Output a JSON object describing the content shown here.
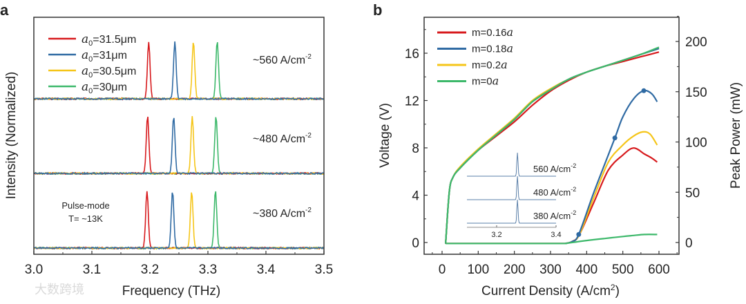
{
  "watermark": "大数跨境",
  "chart_data": [
    {
      "panel_label": "a",
      "type": "line",
      "xlabel": "Frequency (THz)",
      "ylabel": "Intensity (Normalized)",
      "xlim": [
        3.0,
        3.5
      ],
      "xticks": [
        "3.0",
        "3.1",
        "3.2",
        "3.3",
        "3.4",
        "3.5"
      ],
      "legend": [
        {
          "sym": "a",
          "sub": "0",
          "label": "=31.5μm",
          "color": "#d7191c"
        },
        {
          "sym": "a",
          "sub": "0",
          "label": "=31μm",
          "color": "#2f6aa3"
        },
        {
          "sym": "a",
          "sub": "0",
          "label": "=30.5μm",
          "color": "#f5c518"
        },
        {
          "sym": "a",
          "sub": "0",
          "label": "=30μm",
          "color": "#3cb86a"
        }
      ],
      "legend_position": "top-left",
      "groups": [
        {
          "label": "~560 A/cm",
          "sup": "-2",
          "peaks_thz": [
            3.198,
            3.243,
            3.275,
            3.316
          ]
        },
        {
          "label": "~480 A/cm",
          "sup": "-2",
          "peaks_thz": [
            3.196,
            3.241,
            3.273,
            3.314
          ]
        },
        {
          "label": "~380 A/cm",
          "sup": "-2",
          "peaks_thz": [
            3.195,
            3.239,
            3.272,
            3.313
          ]
        }
      ],
      "annotation": [
        "Pulse-mode",
        "T= ~13K"
      ]
    },
    {
      "panel_label": "b",
      "type": "line",
      "xlabel": "Current Density (A/cm",
      "xlabel_sup": "2",
      "xlabel_end": ")",
      "ylabel_left": "Voltage (V)",
      "ylabel_right": "Peak Power (mW)",
      "xlim": [
        -50,
        650
      ],
      "xticks": [
        0,
        100,
        200,
        300,
        400,
        500,
        600
      ],
      "ylim_left": [
        -1,
        19
      ],
      "yticks_left": [
        0,
        4,
        8,
        12,
        16
      ],
      "ylim_right": [
        -11.7,
        224
      ],
      "yticks_right": [
        0,
        50,
        100,
        150,
        200
      ],
      "legend": [
        {
          "label": "m=0.16",
          "sym": "a",
          "color": "#d7191c"
        },
        {
          "label": "m=0.18",
          "sym": "a",
          "color": "#2f6aa3"
        },
        {
          "label": "m=0.2",
          "sym": "a",
          "color": "#f5c518"
        },
        {
          "label": "m=0",
          "sym": "a",
          "color": "#3cb86a"
        }
      ],
      "legend_position": "top-left",
      "voltage_series": [
        {
          "name": "m=0.16a",
          "color": "#d7191c",
          "x": [
            10,
            20,
            30,
            50,
            100,
            150,
            200,
            250,
            300,
            350,
            400,
            450,
            500,
            550,
            600
          ],
          "y": [
            0,
            4.3,
            5.5,
            6.3,
            7.8,
            9.0,
            10.2,
            11.6,
            12.8,
            13.7,
            14.4,
            14.9,
            15.3,
            15.7,
            16.1
          ]
        },
        {
          "name": "m=0.18a",
          "color": "#2f6aa3",
          "x": [
            10,
            20,
            30,
            50,
            100,
            150,
            200,
            250,
            300,
            350,
            400,
            450,
            500,
            550,
            600
          ],
          "y": [
            0,
            4.3,
            5.5,
            6.3,
            7.8,
            9.1,
            10.4,
            11.9,
            12.9,
            13.8,
            14.4,
            14.9,
            15.4,
            15.9,
            16.4
          ]
        },
        {
          "name": "m=0.2a",
          "color": "#f5c518",
          "x": [
            10,
            20,
            30,
            50,
            100,
            150,
            200,
            250,
            300,
            350,
            400,
            450,
            500,
            550,
            600
          ],
          "y": [
            0,
            4.3,
            5.5,
            6.4,
            7.9,
            9.2,
            10.5,
            12.0,
            13.0,
            13.8,
            14.4,
            14.9,
            15.4,
            15.9,
            16.4
          ]
        },
        {
          "name": "m=0a",
          "color": "#3cb86a",
          "x": [
            10,
            20,
            30,
            50,
            100,
            150,
            200,
            250,
            300,
            350,
            400,
            450,
            500,
            550,
            600
          ],
          "y": [
            0,
            4.3,
            5.5,
            6.3,
            7.8,
            9.1,
            10.4,
            11.9,
            12.9,
            13.8,
            14.4,
            14.9,
            15.4,
            15.9,
            16.5
          ]
        }
      ],
      "power_series": [
        {
          "name": "m=0.16a",
          "color": "#d7191c",
          "x": [
            10,
            340,
            360,
            380,
            420,
            460,
            500,
            530,
            560,
            580,
            595
          ],
          "y": [
            -1,
            -1,
            1,
            8,
            40,
            72,
            87,
            94,
            88,
            84,
            80
          ]
        },
        {
          "name": "m=0.2a",
          "color": "#f5c518",
          "x": [
            10,
            340,
            360,
            380,
            420,
            460,
            500,
            530,
            555,
            575,
            595
          ],
          "y": [
            -1,
            -1,
            1,
            8,
            45,
            80,
            97,
            106,
            110,
            108,
            97
          ]
        },
        {
          "name": "m=0.18a",
          "color": "#2f6aa3",
          "x": [
            10,
            340,
            360,
            378,
            420,
            478,
            500,
            530,
            558,
            580,
            595
          ],
          "y": [
            -1,
            -1,
            1,
            8,
            50,
            104,
            125,
            143,
            151,
            148,
            140
          ]
        },
        {
          "name": "m=0a",
          "color": "#3cb86a",
          "x": [
            10,
            340,
            400,
            450,
            500,
            530,
            560,
            595
          ],
          "y": [
            -1,
            -1,
            2,
            4,
            6,
            7,
            8,
            8
          ]
        }
      ],
      "markers": {
        "series": "m=0.18a",
        "x": [
          378,
          478,
          558
        ],
        "y": [
          8,
          104,
          151
        ]
      },
      "inset": {
        "xticks": [
          "3.2",
          "3.4"
        ],
        "xlim": [
          3.1,
          3.4
        ],
        "peak_thz": 3.27,
        "labels": [
          {
            "label": "560 A/cm",
            "sup": "-2"
          },
          {
            "label": "480 A/cm",
            "sup": "-2"
          },
          {
            "label": "380 A/cm",
            "sup": "-2"
          }
        ]
      }
    }
  ]
}
